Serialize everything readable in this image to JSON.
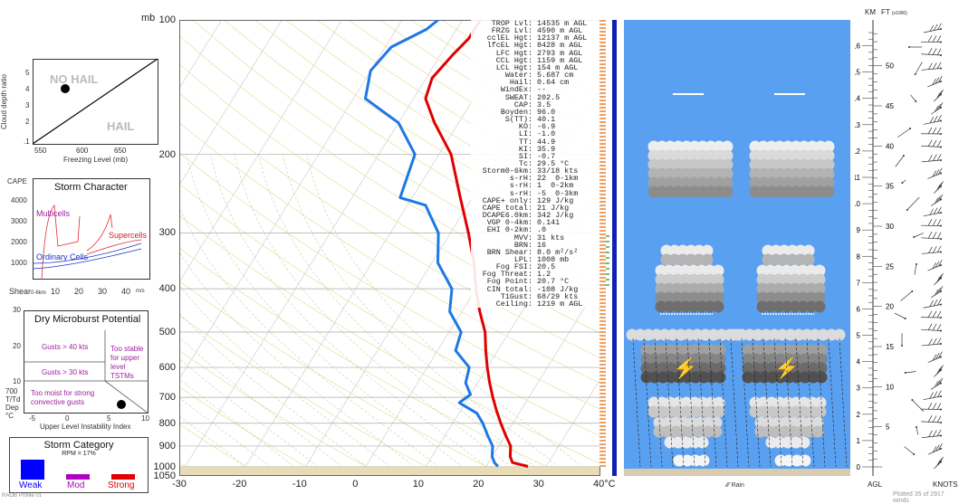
{
  "hail_panel": {
    "ylabel": "Cloud depth ratio",
    "xlabel": "Freezing Level (mb)",
    "yticks": [
      "5",
      "4",
      "3",
      "2",
      ".1"
    ],
    "xticks": [
      "550",
      "600",
      "650"
    ],
    "no_hail": "NO HAIL",
    "hail": "HAIL"
  },
  "storm_character": {
    "title": "Storm Character",
    "cape_label": "CAPE",
    "yticks": [
      "4000",
      "3000",
      "2000",
      "1000"
    ],
    "xticks": [
      "10",
      "20",
      "30",
      "40"
    ],
    "shear_label": "Shear",
    "shear_sub": "0-6km",
    "ms_label": "m/s",
    "multicells": "Multicells",
    "supercells": "Supercells",
    "ordinary": "Ordinary Cells"
  },
  "microburst": {
    "title": "Dry Microburst Potential",
    "yticks": [
      "30",
      "20",
      "10"
    ],
    "gusts40": "Gusts > 40 kts",
    "gusts30": "Gusts > 30 kts",
    "stable1": "Too stable",
    "stable2": "for upper",
    "stable3": "level",
    "stable4": "TSTMs",
    "moist1": "Too moist for strong",
    "moist2": "convective gusts",
    "ylabel1": "700",
    "ylabel2": "T/Td",
    "ylabel3": "Dep",
    "ylabel4": "°C",
    "xticks": [
      "-5",
      "0",
      "5",
      "10"
    ],
    "xlabel": "Upper Level Instability Index"
  },
  "storm_category": {
    "title": "Storm Category",
    "rpm": "RPM = 17%",
    "weak": "Weak",
    "mod": "Mod",
    "strong": "Strong",
    "colors": {
      "weak": "#0000ff",
      "mod": "#b000c0",
      "strong": "#e00000"
    }
  },
  "footer_left": "RAOB Profile 01",
  "skewt": {
    "pressure_unit": "mb",
    "pressure_ticks": [
      "100",
      "200",
      "300",
      "400",
      "500",
      "600",
      "700",
      "800",
      "900",
      "1000",
      "1050"
    ],
    "temp_ticks": [
      "-30",
      "-20",
      "-10",
      "0",
      "10",
      "20",
      "30",
      "40°C"
    ],
    "temp_color": "#e00000",
    "dewpoint_color": "#1e78e6"
  },
  "chart_data": {
    "type": "line",
    "title": "",
    "xlabel": "°C",
    "ylabel": "mb",
    "xlim": [
      -30,
      40
    ],
    "ylim": [
      1050,
      100
    ],
    "y_scale": "log",
    "series": [
      {
        "values": [
          [
            27,
            1000
          ],
          [
            24,
            980
          ],
          [
            23,
            950
          ],
          [
            22,
            900
          ],
          [
            20,
            850
          ],
          [
            18,
            800
          ],
          [
            16,
            750
          ],
          [
            14,
            700
          ],
          [
            12,
            650
          ],
          [
            10,
            600
          ],
          [
            8,
            550
          ],
          [
            6,
            500
          ],
          [
            3,
            450
          ],
          [
            0,
            400
          ],
          [
            -3,
            350
          ],
          [
            -7,
            300
          ],
          [
            -12,
            250
          ],
          [
            -18,
            200
          ],
          [
            -24,
            170
          ],
          [
            -28,
            150
          ],
          [
            -29,
            135
          ],
          [
            -28,
            120
          ],
          [
            -27,
            110
          ],
          [
            -27,
            100
          ]
        ]
      },
      {
        "values": [
          [
            22,
            1000
          ],
          [
            21,
            980
          ],
          [
            20,
            950
          ],
          [
            19,
            900
          ],
          [
            17,
            850
          ],
          [
            15,
            800
          ],
          [
            13,
            760
          ],
          [
            9,
            720
          ],
          [
            10,
            690
          ],
          [
            8,
            650
          ],
          [
            7,
            600
          ],
          [
            3,
            550
          ],
          [
            2,
            500
          ],
          [
            -2,
            450
          ],
          [
            -4,
            400
          ],
          [
            -9,
            350
          ],
          [
            -12,
            300
          ],
          [
            -17,
            260
          ],
          [
            -22,
            250
          ],
          [
            -24,
            200
          ],
          [
            -30,
            170
          ],
          [
            -38,
            150
          ],
          [
            -40,
            130
          ],
          [
            -39,
            115
          ],
          [
            -35,
            105
          ],
          [
            -34,
            100
          ]
        ]
      }
    ],
    "grid": true,
    "legend": "none"
  },
  "indices": [
    {
      "label": "TROP Lvl:",
      "value": "14535 m AGL"
    },
    {
      "label": "FRZG Lvl:",
      "value": "4590 m AGL"
    },
    {
      "label": "cclEL Hgt:",
      "value": "12137 m AGL"
    },
    {
      "label": "lfcEL Hgt:",
      "value": "8428 m AGL"
    },
    {
      "label": "LFC Hgt:",
      "value": "2793 m AGL"
    },
    {
      "label": "CCL Hgt:",
      "value": "1159 m AGL"
    },
    {
      "label": "LCL Hgt:",
      "value": "154 m AGL"
    },
    {
      "label": "Water:",
      "value": "5.687 cm"
    },
    {
      "label": "Hail:",
      "value": "0.64 cm"
    },
    {
      "label": "WindEx:",
      "value": "--"
    },
    {
      "label": "SWEAT:",
      "value": "202.5"
    },
    {
      "label": "CAP:",
      "value": "3.5"
    },
    {
      "label": "Boyden:",
      "value": "96.0"
    },
    {
      "label": "S(TT):",
      "value": "40.1"
    },
    {
      "label": "KO:",
      "value": "-6.9"
    },
    {
      "label": "LI:",
      "value": "-1.0"
    },
    {
      "label": "TT:",
      "value": "44.9"
    },
    {
      "label": "KI:",
      "value": "35.9"
    },
    {
      "label": "SI:",
      "value": "-0.7"
    },
    {
      "label": "Tc:",
      "value": "29.5 °C"
    },
    {
      "label": "Storm0-6km:",
      "value": "33/18 kts"
    },
    {
      "label": "s-rH:",
      "value": "22  0-1km"
    },
    {
      "label": "s-rH:",
      "value": "1  0-2km"
    },
    {
      "label": "s-rH:",
      "value": "-5  0-3km"
    },
    {
      "label": "CAPE+ only:",
      "value": "129 J/kg"
    },
    {
      "label": "CAPE total:",
      "value": "21 J/kg"
    },
    {
      "label": "DCAPE6.0km:",
      "value": "342 J/kg"
    },
    {
      "label": "VGP 0-4km:",
      "value": "0.141"
    },
    {
      "label": "EHI 0-2km:",
      "value": ".0"
    },
    {
      "label": "MVV:",
      "value": "31 kts"
    },
    {
      "label": "BRN:",
      "value": "16"
    },
    {
      "label": "BRN Shear:",
      "value": "8.0 m²/s²"
    },
    {
      "label": "LPL:",
      "value": "1008 mb"
    },
    {
      "label": "Fog FSI:",
      "value": "20.5"
    },
    {
      "label": "Fog Threat:",
      "value": "1.2"
    },
    {
      "label": "Fog Point:",
      "value": "20.7 °C"
    },
    {
      "label": "CIN total:",
      "value": "-108 J/kg"
    },
    {
      "label": "T1Gust:",
      "value": "68/29 kts"
    },
    {
      "label": "Ceiling:",
      "value": "1219 m AGL"
    }
  ],
  "cloud_panel": {
    "rain_label": "Rain",
    "rain_icon": "rain-icon",
    "lightning_icon": "lightning-icon",
    "sky_color": "#5aa0f0"
  },
  "height_scale": {
    "km_label": "KM",
    "ft_label": "FT",
    "ft_sub": "(x1000)",
    "km_ticks": [
      "16",
      "15",
      "14",
      "13",
      "12",
      "11",
      "10",
      "9",
      "8",
      "7",
      "6",
      "5",
      "4",
      "3",
      "2",
      "1",
      "0"
    ],
    "ft_ticks": [
      "50",
      "45",
      "40",
      "35",
      "30",
      "25",
      "20",
      "15",
      "10",
      "5"
    ],
    "agl_label": "AGL",
    "knots_label": "KNOTS",
    "plotted": "Plotted 35 of 2917 winds"
  }
}
